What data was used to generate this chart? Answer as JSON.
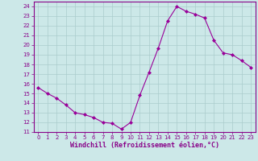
{
  "x": [
    0,
    1,
    2,
    3,
    4,
    5,
    6,
    7,
    8,
    9,
    10,
    11,
    12,
    13,
    14,
    15,
    16,
    17,
    18,
    19,
    20,
    21,
    22,
    23
  ],
  "y": [
    15.6,
    15.0,
    14.5,
    13.8,
    13.0,
    12.8,
    12.5,
    12.0,
    11.9,
    11.3,
    12.0,
    14.8,
    17.2,
    19.7,
    22.5,
    24.0,
    23.5,
    23.2,
    22.8,
    20.5,
    19.2,
    19.0,
    18.4,
    17.7
  ],
  "line_color": "#990099",
  "marker": "D",
  "marker_size": 2,
  "bg_color": "#cce8e8",
  "grid_color": "#aacccc",
  "xlabel": "Windchill (Refroidissement éolien,°C)",
  "xlim": [
    -0.5,
    23.5
  ],
  "ylim": [
    11,
    24.5
  ],
  "yticks": [
    11,
    12,
    13,
    14,
    15,
    16,
    17,
    18,
    19,
    20,
    21,
    22,
    23,
    24
  ],
  "xticks": [
    0,
    1,
    2,
    3,
    4,
    5,
    6,
    7,
    8,
    9,
    10,
    11,
    12,
    13,
    14,
    15,
    16,
    17,
    18,
    19,
    20,
    21,
    22,
    23
  ],
  "tick_fontsize": 5,
  "label_fontsize": 6,
  "tick_color": "#880088",
  "label_color": "#880088"
}
